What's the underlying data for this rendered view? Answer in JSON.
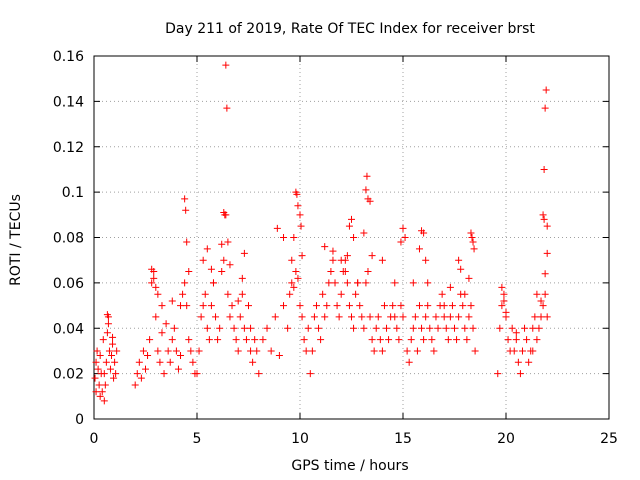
{
  "chart_data": {
    "type": "scatter",
    "title": "Day 211 of 2019, Rate Of TEC Index for receiver brst",
    "xlabel": "GPS time / hours",
    "ylabel": "ROTI / TECUs",
    "xlim": [
      0,
      25
    ],
    "ylim": [
      0,
      0.16
    ],
    "xticks": [
      0,
      5,
      10,
      15,
      20,
      25
    ],
    "xtick_labels": [
      "0",
      "5",
      "10",
      "15",
      "20",
      "25"
    ],
    "yticks": [
      0,
      0.02,
      0.04,
      0.06,
      0.08,
      0.1,
      0.12,
      0.14,
      0.16
    ],
    "ytick_labels": [
      "0",
      "0.02",
      "0.04",
      "0.06",
      "0.08",
      "0.1",
      "0.12",
      "0.14",
      "0.16"
    ],
    "grid": true,
    "marker": "+",
    "color": "#ff0000",
    "series": [
      {
        "name": "ROTI",
        "x": [
          0.05,
          0.1,
          0.15,
          0.2,
          0.25,
          0.3,
          0.35,
          0.4,
          0.45,
          0.5,
          0.55,
          0.6,
          0.65,
          0.7,
          0.75,
          0.8,
          0.85,
          0.9,
          0.95,
          1.0,
          1.05,
          1.1,
          0.1,
          0.3,
          0.5,
          0.65,
          0.7,
          0.9,
          2.0,
          2.1,
          2.2,
          2.3,
          2.4,
          2.5,
          2.6,
          2.7,
          2.8,
          2.9,
          3.0,
          3.1,
          3.2,
          3.3,
          3.4,
          3.5,
          3.6,
          3.7,
          3.8,
          3.9,
          4.0,
          4.1,
          4.2,
          4.3,
          4.4,
          4.5,
          4.6,
          4.7,
          4.8,
          4.9,
          2.8,
          2.9,
          3.0,
          3.1,
          3.3,
          3.8,
          4.2,
          4.4,
          4.45,
          4.5,
          4.6,
          5.0,
          5.1,
          5.2,
          5.3,
          5.4,
          5.5,
          5.6,
          5.7,
          5.8,
          5.9,
          6.0,
          6.1,
          6.2,
          6.3,
          6.4,
          6.5,
          6.6,
          6.7,
          6.8,
          6.9,
          7.0,
          7.1,
          7.2,
          7.3,
          7.4,
          7.5,
          7.6,
          7.7,
          7.8,
          7.9,
          5.3,
          5.5,
          5.7,
          5.8,
          6.2,
          6.3,
          6.35,
          6.4,
          6.45,
          6.5,
          6.6,
          7.0,
          7.2,
          7.3,
          7.6,
          8.0,
          8.2,
          8.4,
          8.6,
          8.8,
          9.0,
          9.2,
          9.4,
          9.5,
          9.6,
          9.7,
          9.8,
          9.9,
          10.0,
          10.1,
          10.2,
          10.3,
          10.4,
          8.9,
          9.2,
          9.6,
          9.7,
          9.8,
          9.85,
          9.9,
          10.0,
          10.05,
          10.1,
          10.5,
          10.6,
          10.7,
          10.8,
          10.9,
          11.0,
          11.1,
          11.2,
          11.3,
          11.4,
          11.5,
          11.6,
          11.7,
          11.8,
          11.9,
          12.0,
          12.1,
          12.2,
          12.3,
          12.4,
          12.5,
          12.6,
          12.7,
          12.8,
          12.9,
          13.0,
          13.1,
          13.2,
          13.3,
          13.4,
          13.5,
          13.6,
          13.7,
          13.8,
          13.9,
          14.0,
          14.1,
          14.2,
          14.3,
          14.4,
          14.5,
          14.6,
          14.7,
          14.8,
          14.9,
          15.0,
          11.2,
          11.6,
          12.0,
          12.2,
          12.3,
          12.4,
          12.5,
          12.6,
          12.8,
          13.1,
          13.2,
          13.25,
          13.3,
          13.4,
          13.5,
          14.0,
          14.6,
          14.9,
          15.0,
          15.1,
          15.2,
          15.3,
          15.4,
          15.5,
          15.6,
          15.7,
          15.8,
          15.9,
          16.0,
          16.1,
          16.2,
          16.3,
          16.4,
          16.5,
          16.6,
          16.7,
          16.8,
          16.9,
          17.0,
          17.1,
          17.2,
          17.3,
          17.4,
          17.5,
          17.6,
          17.7,
          17.8,
          17.9,
          18.0,
          18.1,
          18.2,
          18.3,
          18.4,
          18.5,
          15.5,
          15.8,
          15.9,
          16.0,
          16.1,
          16.2,
          17.0,
          17.3,
          17.7,
          17.8,
          18.0,
          18.2,
          18.3,
          18.35,
          18.4,
          18.45,
          19.6,
          19.7,
          19.8,
          19.9,
          20.0,
          20.1,
          20.2,
          20.3,
          20.4,
          20.5,
          20.6,
          20.7,
          20.8,
          20.9,
          21.0,
          21.1,
          21.2,
          21.3,
          21.4,
          21.5,
          21.6,
          21.7,
          21.8,
          21.9,
          22.0,
          19.8,
          19.9,
          20.0,
          20.5,
          21.3,
          21.5,
          21.7,
          21.8,
          21.85,
          21.9,
          21.95,
          22.0,
          22.0,
          21.9,
          21.85
        ],
        "y": [
          0.018,
          0.025,
          0.03,
          0.022,
          0.015,
          0.028,
          0.02,
          0.012,
          0.035,
          0.02,
          0.015,
          0.025,
          0.038,
          0.045,
          0.03,
          0.022,
          0.028,
          0.033,
          0.018,
          0.025,
          0.02,
          0.03,
          0.012,
          0.01,
          0.008,
          0.046,
          0.042,
          0.036,
          0.015,
          0.02,
          0.025,
          0.018,
          0.03,
          0.022,
          0.028,
          0.035,
          0.06,
          0.065,
          0.045,
          0.03,
          0.025,
          0.038,
          0.02,
          0.042,
          0.03,
          0.025,
          0.035,
          0.04,
          0.03,
          0.022,
          0.028,
          0.055,
          0.06,
          0.05,
          0.035,
          0.03,
          0.025,
          0.02,
          0.066,
          0.062,
          0.058,
          0.055,
          0.05,
          0.052,
          0.05,
          0.097,
          0.092,
          0.078,
          0.065,
          0.02,
          0.03,
          0.045,
          0.05,
          0.055,
          0.04,
          0.035,
          0.05,
          0.06,
          0.045,
          0.035,
          0.04,
          0.065,
          0.07,
          0.09,
          0.055,
          0.045,
          0.05,
          0.04,
          0.035,
          0.03,
          0.045,
          0.055,
          0.04,
          0.035,
          0.05,
          0.03,
          0.025,
          0.035,
          0.03,
          0.07,
          0.075,
          0.066,
          0.06,
          0.077,
          0.091,
          0.09,
          0.156,
          0.137,
          0.078,
          0.068,
          0.052,
          0.062,
          0.073,
          0.04,
          0.02,
          0.035,
          0.04,
          0.03,
          0.045,
          0.028,
          0.05,
          0.04,
          0.055,
          0.06,
          0.058,
          0.065,
          0.062,
          0.05,
          0.045,
          0.035,
          0.03,
          0.04,
          0.084,
          0.08,
          0.07,
          0.08,
          0.1,
          0.099,
          0.094,
          0.09,
          0.085,
          0.072,
          0.02,
          0.03,
          0.045,
          0.05,
          0.04,
          0.035,
          0.055,
          0.045,
          0.05,
          0.06,
          0.065,
          0.07,
          0.06,
          0.05,
          0.045,
          0.055,
          0.065,
          0.07,
          0.06,
          0.05,
          0.045,
          0.04,
          0.055,
          0.06,
          0.05,
          0.045,
          0.04,
          0.06,
          0.065,
          0.045,
          0.035,
          0.03,
          0.04,
          0.045,
          0.035,
          0.03,
          0.05,
          0.04,
          0.035,
          0.045,
          0.05,
          0.045,
          0.04,
          0.035,
          0.05,
          0.045,
          0.076,
          0.074,
          0.07,
          0.065,
          0.072,
          0.085,
          0.088,
          0.08,
          0.06,
          0.082,
          0.101,
          0.107,
          0.097,
          0.096,
          0.072,
          0.07,
          0.06,
          0.078,
          0.084,
          0.08,
          0.03,
          0.025,
          0.035,
          0.04,
          0.045,
          0.03,
          0.05,
          0.04,
          0.035,
          0.045,
          0.05,
          0.04,
          0.035,
          0.03,
          0.045,
          0.04,
          0.05,
          0.055,
          0.045,
          0.04,
          0.035,
          0.045,
          0.05,
          0.04,
          0.035,
          0.045,
          0.055,
          0.05,
          0.04,
          0.035,
          0.045,
          0.05,
          0.04,
          0.03,
          0.06,
          0.075,
          0.083,
          0.082,
          0.07,
          0.06,
          0.05,
          0.058,
          0.07,
          0.066,
          0.055,
          0.062,
          0.082,
          0.08,
          0.078,
          0.075,
          0.02,
          0.04,
          0.05,
          0.055,
          0.045,
          0.035,
          0.03,
          0.04,
          0.03,
          0.035,
          0.025,
          0.02,
          0.03,
          0.04,
          0.035,
          0.025,
          0.03,
          0.04,
          0.045,
          0.035,
          0.04,
          0.045,
          0.05,
          0.055,
          0.045,
          0.058,
          0.052,
          0.047,
          0.038,
          0.03,
          0.055,
          0.052,
          0.09,
          0.088,
          0.137,
          0.145,
          0.085,
          0.073,
          0.064,
          0.11
        ]
      }
    ]
  }
}
